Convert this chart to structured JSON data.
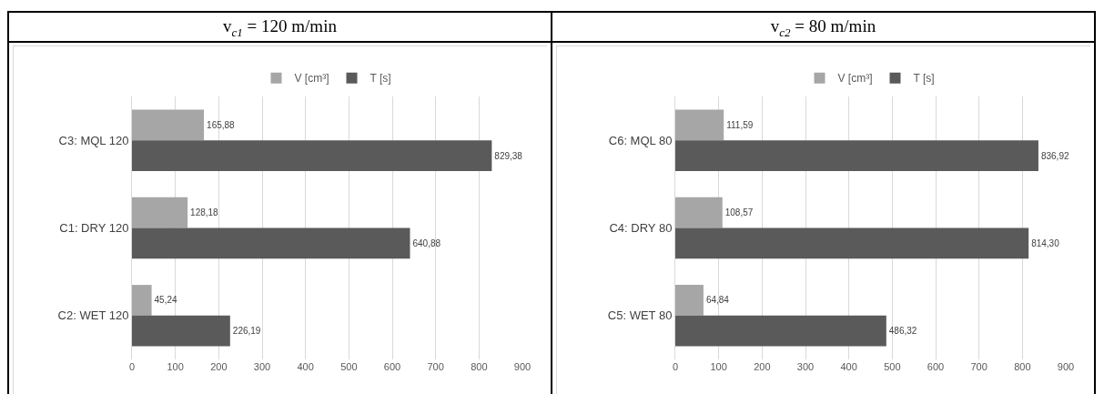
{
  "chart_data": [
    {
      "type": "bar",
      "orientation": "horizontal",
      "title": "v$_{c1}$ = 120 m/min",
      "categories": [
        "C3: MQL 120",
        "C1: DRY 120",
        "C2: WET 120"
      ],
      "series": [
        {
          "name": "V [cm³]",
          "color": "#a6a6a6",
          "values": [
            165.88,
            128.18,
            45.24
          ],
          "value_labels": [
            "165,88",
            "128,18",
            "45,24"
          ]
        },
        {
          "name": "T [s]",
          "color": "#5a5a5a",
          "values": [
            829.38,
            640.88,
            226.19
          ],
          "value_labels": [
            "829,38",
            "640,88",
            "226,19"
          ]
        }
      ],
      "xlim": [
        0,
        900
      ],
      "xticks": [
        0,
        100,
        200,
        300,
        400,
        500,
        600,
        700,
        800,
        900
      ],
      "grid": "x",
      "legend": "top"
    },
    {
      "type": "bar",
      "orientation": "horizontal",
      "title": "v$_{c2}$ = 80 m/min",
      "categories": [
        "C6: MQL 80",
        "C4: DRY 80",
        "C5: WET 80"
      ],
      "series": [
        {
          "name": "V [cm³]",
          "color": "#a6a6a6",
          "values": [
            111.59,
            108.57,
            64.84
          ],
          "value_labels": [
            "111,59",
            "108,57",
            "64,84"
          ]
        },
        {
          "name": "T [s]",
          "color": "#5a5a5a",
          "values": [
            836.92,
            814.3,
            486.32
          ],
          "value_labels": [
            "836,92",
            "814,30",
            "486,32"
          ]
        }
      ],
      "xlim": [
        0,
        900
      ],
      "xticks": [
        0,
        100,
        200,
        300,
        400,
        500,
        600,
        700,
        800,
        900
      ],
      "grid": "x",
      "legend": "top"
    }
  ]
}
